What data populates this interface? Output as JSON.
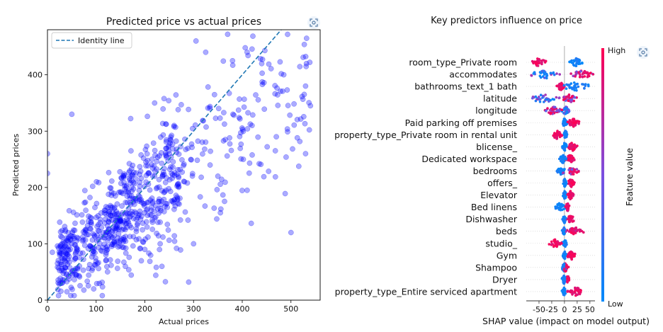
{
  "chart_data": [
    {
      "type": "scatter",
      "title": "Predicted price vs actual prices",
      "xlabel": "Actual prices",
      "ylabel": "Predicted prices",
      "xlim": [
        0,
        560
      ],
      "ylim": [
        0,
        480
      ],
      "xticks": [
        0,
        100,
        200,
        300,
        400,
        500
      ],
      "yticks": [
        0,
        100,
        200,
        300,
        400
      ],
      "legend": {
        "position": "upper-left",
        "entries": [
          "Identity line"
        ]
      },
      "identity_line": {
        "name": "Identity line",
        "style": "dashed",
        "color": "#1f77b4"
      },
      "point_color": "#0000ff",
      "approx_point_count": 900,
      "points_sample": [
        [
          305,
          460
        ],
        [
          370,
          472
        ],
        [
          410,
          440
        ],
        [
          325,
          440
        ],
        [
          530,
          380
        ],
        [
          540,
          345
        ],
        [
          500,
          120
        ],
        [
          290,
          32
        ],
        [
          0,
          260
        ],
        [
          0,
          225
        ],
        [
          50,
          330
        ],
        [
          10,
          85
        ],
        [
          235,
          60
        ],
        [
          530,
          260
        ],
        [
          380,
          425
        ],
        [
          440,
          420
        ],
        [
          30,
          30
        ],
        [
          40,
          15
        ],
        [
          60,
          45
        ],
        [
          95,
          20
        ],
        [
          120,
          70
        ],
        [
          160,
          60
        ],
        [
          200,
          90
        ],
        [
          300,
          100
        ],
        [
          420,
          310
        ],
        [
          470,
          290
        ],
        [
          410,
          195
        ],
        [
          350,
          220
        ],
        [
          260,
          310
        ],
        [
          220,
          350
        ]
      ]
    },
    {
      "type": "scatter",
      "subtype": "shap-beeswarm",
      "title": "Key predictors influence on price",
      "xlabel": "SHAP value (impact on model output)",
      "xlim": [
        -75,
        60
      ],
      "xticks": [
        -50,
        -25,
        0,
        25,
        50
      ],
      "colorbar": {
        "label": "Feature value",
        "high": "High",
        "low": "Low",
        "low_color": "#008afb",
        "high_color": "#ff0052"
      },
      "features": [
        "room_type_Private room",
        "accommodates",
        "bathrooms_text_1 bath",
        "latitude",
        "longitude",
        "Paid parking off premises",
        "property_type_Private room in rental unit",
        "blicense_",
        "Dedicated workspace",
        "bedrooms",
        "offers_",
        "Elevator",
        "Bed linens",
        "Dishwasher",
        "beds",
        "studio_",
        "Gym",
        "Shampoo",
        "Dryer",
        "property_type_Entire serviced apartment"
      ],
      "spreads": [
        {
          "blue": [
            10,
            35
          ],
          "red": [
            -70,
            -35
          ],
          "mix": 0.0
        },
        {
          "blue": [
            -70,
            -5
          ],
          "red": [
            5,
            60
          ],
          "mix": 0.35
        },
        {
          "blue": [
            -10,
            55
          ],
          "red": [
            -15,
            0
          ],
          "mix": 0.0
        },
        {
          "blue": [
            -70,
            -10
          ],
          "red": [
            -5,
            25
          ],
          "mix": 0.5
        },
        {
          "blue": [
            -5,
            10
          ],
          "red": [
            -40,
            -5
          ],
          "mix": 0.5
        },
        {
          "blue": [
            -5,
            5
          ],
          "red": [
            5,
            30
          ],
          "mix": 0.0
        },
        {
          "blue": [
            -2,
            6
          ],
          "red": [
            -25,
            -5
          ],
          "mix": 0.0
        },
        {
          "blue": [
            -4,
            5
          ],
          "red": [
            6,
            25
          ],
          "mix": 0.0
        },
        {
          "blue": [
            -10,
            4
          ],
          "red": [
            3,
            20
          ],
          "mix": 0.0
        },
        {
          "blue": [
            -15,
            3
          ],
          "red": [
            5,
            28
          ],
          "mix": 0.2
        },
        {
          "blue": [
            -3,
            4
          ],
          "red": [
            6,
            20
          ],
          "mix": 0.0
        },
        {
          "blue": [
            -3,
            4
          ],
          "red": [
            5,
            18
          ],
          "mix": 0.0
        },
        {
          "blue": [
            -20,
            3
          ],
          "red": [
            2,
            10
          ],
          "mix": 0.0
        },
        {
          "blue": [
            -4,
            3
          ],
          "red": [
            4,
            20
          ],
          "mix": 0.0
        },
        {
          "blue": [
            -6,
            4
          ],
          "red": [
            5,
            38
          ],
          "mix": 0.2
        },
        {
          "blue": [
            -3,
            5
          ],
          "red": [
            -30,
            -5
          ],
          "mix": 0.0
        },
        {
          "blue": [
            -3,
            4
          ],
          "red": [
            5,
            22
          ],
          "mix": 0.0
        },
        {
          "blue": [
            -5,
            3
          ],
          "red": [
            -5,
            8
          ],
          "mix": 0.0
        },
        {
          "blue": [
            -5,
            3
          ],
          "red": [
            2,
            10
          ],
          "mix": 0.0
        },
        {
          "blue": [
            -5,
            3
          ],
          "red": [
            6,
            40
          ],
          "mix": 0.0
        }
      ]
    }
  ],
  "ui": {
    "expand_icon": "focus-expand-icon"
  }
}
